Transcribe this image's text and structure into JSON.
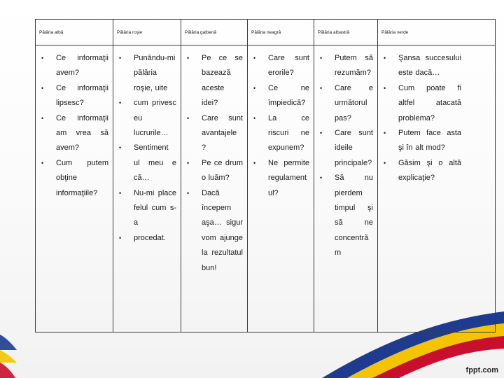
{
  "colors": {
    "blue": "#1f3b8f",
    "yellow": "#f5c400",
    "red": "#c8102e",
    "text": "#1a1a1a",
    "border": "#3a3a3a"
  },
  "columns": [
    {
      "header": "Pălăria albă",
      "items": [
        "Ce informaţii avem?",
        "Ce informaţii lipsesc?",
        "Ce informaţii am vrea să avem?",
        "Cum putem obţine informaţiile?"
      ]
    },
    {
      "header": "Pălăria roşie",
      "items": [
        "Punându-mi pălăria roşie, uite",
        "cum privesc eu lucrurile…",
        "Sentiment ul meu e că…",
        "Nu-mi place felul cum s-a",
        "procedat."
      ]
    },
    {
      "header": "Pălăria galbenă",
      "items": [
        "Pe ce se bazează aceste idei?",
        "Care sunt avantajele ?",
        "Pe ce drum o luăm?",
        "Dacă începem aşa… sigur vom ajunge la rezultatul bun!"
      ]
    },
    {
      "header": "Pălăria neagră",
      "items": [
        "Care sunt erorile?",
        "Ce ne împiedică?",
        "La ce riscuri ne expunem?",
        "Ne permite regulament ul?"
      ]
    },
    {
      "header": "Pălăria albastră",
      "items": [
        "Putem să rezumăm?",
        "Care e următorul pas?",
        "Care sunt ideile principale?",
        "Să nu pierdem timpul şi să ne concentră m"
      ]
    },
    {
      "header": "Pălăria verde",
      "items": [
        "Şansa succesului este dacă…",
        "Cum poate fi altfel atacată problema?",
        "Putem face asta şi în alt mod?",
        "Găsim şi o altă explicaţie?"
      ]
    }
  ],
  "watermark": "fppt.com"
}
